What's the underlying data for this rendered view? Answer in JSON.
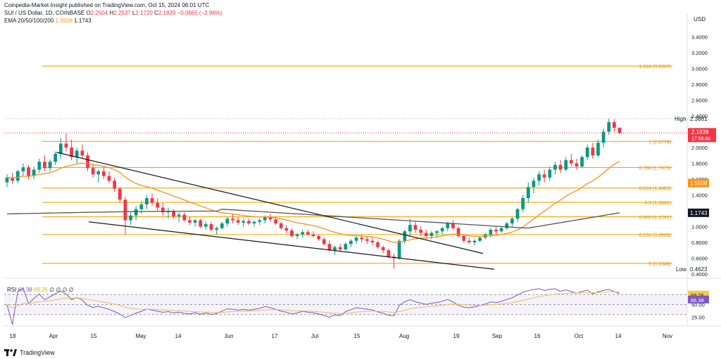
{
  "header": {
    "publisher": "Coinpedia-Market-Insight published on TradingView.com, Oct 15, 2024 06:01 UTC",
    "symbol": "SUI / US Dollar, 1D, COINBASE",
    "o_label": "O",
    "o_val": "2.2504",
    "h_label": "H",
    "h_val": "2.2537",
    "l_label": "L",
    "l_val": "2.1720",
    "c_label": "C",
    "c_val": "2.1839",
    "change": "−0.0665 (−2.96%)",
    "ema_label": "EMA 20/50/100/200",
    "ema_val1": "1.5508",
    "ema_val2": "1.1743"
  },
  "currency": "USD",
  "rsi_header": {
    "label": "RSI",
    "val1": "66.38",
    "val2": "69.26",
    "zeros": "∅ ∅ ∅ ∅"
  },
  "footer": {
    "brand": "TradingView"
  },
  "colors": {
    "up": "#089981",
    "down": "#f23645",
    "fib": "#f7a600",
    "ema_orange": "#f7931a",
    "ema_gray": "#555555",
    "rsi": "#7e57c2",
    "rsi_ma": "#e6c35c"
  },
  "chart_data": {
    "type": "candlestick",
    "price_axis": {
      "ylim": [
        0.4,
        3.6
      ],
      "ticks": [
        "3.4000",
        "3.2000",
        "3.0000",
        "2.8000",
        "2.6000",
        "2.4000",
        "2.2000",
        "2.0000",
        "1.8000",
        "1.6000",
        "1.4000",
        "1.2000",
        "1.0000",
        "0.8000",
        "0.6000",
        "0.4000"
      ]
    },
    "x_ticks": [
      "18",
      "Apr",
      "15",
      "May",
      "14",
      "Jun",
      "17",
      "Jul",
      "15",
      "Aug",
      "19",
      "Sep",
      "16",
      "Oct",
      "14",
      "Nov"
    ],
    "fib_levels": [
      {
        "label": "1.618 (3.0307)",
        "value": 3.0307
      },
      {
        "label": "1 (2.0774)",
        "value": 2.0774
      },
      {
        "label": "0.786 (1.7473)",
        "value": 1.7473
      },
      {
        "label": "0.618 (1.4883)",
        "value": 1.4883
      },
      {
        "label": "0.5 (1.3061)",
        "value": 1.3061
      },
      {
        "label": "0.382 (1.1241)",
        "value": 1.1241
      },
      {
        "label": "0.236 (0.8989)",
        "value": 0.8989
      },
      {
        "label": "0 (0.5348)",
        "value": 0.5348
      }
    ],
    "markers": {
      "high_label": "High",
      "high": "2.3661",
      "low_label": "Low",
      "low": "0.4623",
      "last_price": "2.1839",
      "countdown": "17:58:48",
      "ema_fast": "1.5508",
      "ema_slow": "1.1743"
    },
    "rsi_axis": {
      "ticks": [
        "69.26",
        "66.38",
        "50.00",
        "25.00"
      ],
      "ylim": [
        10,
        90
      ]
    },
    "candles": [
      [
        1.56,
        1.66,
        1.5,
        1.62
      ],
      [
        1.62,
        1.68,
        1.54,
        1.58
      ],
      [
        1.58,
        1.72,
        1.55,
        1.7
      ],
      [
        1.7,
        1.8,
        1.64,
        1.75
      ],
      [
        1.75,
        1.78,
        1.6,
        1.64
      ],
      [
        1.64,
        1.76,
        1.6,
        1.72
      ],
      [
        1.72,
        1.86,
        1.68,
        1.82
      ],
      [
        1.82,
        1.9,
        1.7,
        1.74
      ],
      [
        1.74,
        1.85,
        1.7,
        1.82
      ],
      [
        1.82,
        1.95,
        1.78,
        1.92
      ],
      [
        1.92,
        2.12,
        1.86,
        2.05
      ],
      [
        2.05,
        2.18,
        1.95,
        2.0
      ],
      [
        2.0,
        2.1,
        1.84,
        1.88
      ],
      [
        1.88,
        2.0,
        1.8,
        1.96
      ],
      [
        1.96,
        2.04,
        1.86,
        1.9
      ],
      [
        1.9,
        1.94,
        1.7,
        1.74
      ],
      [
        1.74,
        1.8,
        1.62,
        1.66
      ],
      [
        1.66,
        1.72,
        1.56,
        1.7
      ],
      [
        1.7,
        1.75,
        1.6,
        1.64
      ],
      [
        1.64,
        1.7,
        1.55,
        1.58
      ],
      [
        1.58,
        1.62,
        1.44,
        1.48
      ],
      [
        1.48,
        1.5,
        1.3,
        1.34
      ],
      [
        1.34,
        1.38,
        0.9,
        1.08
      ],
      [
        1.08,
        1.18,
        1.02,
        1.14
      ],
      [
        1.14,
        1.26,
        1.08,
        1.22
      ],
      [
        1.22,
        1.32,
        1.16,
        1.28
      ],
      [
        1.28,
        1.4,
        1.22,
        1.36
      ],
      [
        1.36,
        1.42,
        1.26,
        1.3
      ],
      [
        1.3,
        1.36,
        1.2,
        1.24
      ],
      [
        1.24,
        1.3,
        1.14,
        1.18
      ],
      [
        1.18,
        1.24,
        1.1,
        1.2
      ],
      [
        1.2,
        1.22,
        1.1,
        1.13
      ],
      [
        1.13,
        1.18,
        1.06,
        1.15
      ],
      [
        1.15,
        1.18,
        1.06,
        1.08
      ],
      [
        1.08,
        1.12,
        1.02,
        1.05
      ],
      [
        1.05,
        1.1,
        1.0,
        1.08
      ],
      [
        1.08,
        1.1,
        0.98,
        1.0
      ],
      [
        1.0,
        1.06,
        0.96,
        1.03
      ],
      [
        1.03,
        1.06,
        0.94,
        0.96
      ],
      [
        0.96,
        1.0,
        0.9,
        0.98
      ],
      [
        0.98,
        1.06,
        0.96,
        1.04
      ],
      [
        1.04,
        1.12,
        1.0,
        1.1
      ],
      [
        1.1,
        1.16,
        1.04,
        1.08
      ],
      [
        1.08,
        1.12,
        1.02,
        1.05
      ],
      [
        1.05,
        1.1,
        1.0,
        1.07
      ],
      [
        1.07,
        1.1,
        1.02,
        1.04
      ],
      [
        1.04,
        1.08,
        1.0,
        1.06
      ],
      [
        1.06,
        1.1,
        1.02,
        1.08
      ],
      [
        1.08,
        1.14,
        1.04,
        1.12
      ],
      [
        1.12,
        1.16,
        1.06,
        1.09
      ],
      [
        1.09,
        1.12,
        1.02,
        1.04
      ],
      [
        1.04,
        1.06,
        0.96,
        0.98
      ],
      [
        0.98,
        1.02,
        0.92,
        0.95
      ],
      [
        0.95,
        0.98,
        0.86,
        0.88
      ],
      [
        0.88,
        0.92,
        0.84,
        0.9
      ],
      [
        0.9,
        0.96,
        0.86,
        0.93
      ],
      [
        0.93,
        0.96,
        0.88,
        0.9
      ],
      [
        0.9,
        0.94,
        0.86,
        0.88
      ],
      [
        0.88,
        0.9,
        0.82,
        0.84
      ],
      [
        0.84,
        0.86,
        0.76,
        0.78
      ],
      [
        0.78,
        0.82,
        0.68,
        0.7
      ],
      [
        0.7,
        0.76,
        0.64,
        0.74
      ],
      [
        0.74,
        0.78,
        0.68,
        0.71
      ],
      [
        0.71,
        0.8,
        0.7,
        0.78
      ],
      [
        0.78,
        0.84,
        0.74,
        0.82
      ],
      [
        0.82,
        0.88,
        0.78,
        0.86
      ],
      [
        0.86,
        0.9,
        0.8,
        0.84
      ],
      [
        0.84,
        0.88,
        0.78,
        0.82
      ],
      [
        0.82,
        0.86,
        0.76,
        0.8
      ],
      [
        0.8,
        0.82,
        0.72,
        0.74
      ],
      [
        0.74,
        0.76,
        0.66,
        0.7
      ],
      [
        0.7,
        0.72,
        0.6,
        0.62
      ],
      [
        0.62,
        0.66,
        0.47,
        0.6
      ],
      [
        0.6,
        0.84,
        0.58,
        0.82
      ],
      [
        0.82,
        0.96,
        0.78,
        0.94
      ],
      [
        0.94,
        1.1,
        0.88,
        1.02
      ],
      [
        1.02,
        1.06,
        0.92,
        0.96
      ],
      [
        0.96,
        1.0,
        0.88,
        0.92
      ],
      [
        0.92,
        0.96,
        0.84,
        0.88
      ],
      [
        0.88,
        0.94,
        0.84,
        0.92
      ],
      [
        0.92,
        0.96,
        0.86,
        0.94
      ],
      [
        0.94,
        1.0,
        0.9,
        0.98
      ],
      [
        0.98,
        1.06,
        0.94,
        1.04
      ],
      [
        1.04,
        1.08,
        0.96,
        0.98
      ],
      [
        0.98,
        1.0,
        0.86,
        0.88
      ],
      [
        0.88,
        0.9,
        0.8,
        0.82
      ],
      [
        0.82,
        0.86,
        0.78,
        0.8
      ],
      [
        0.8,
        0.84,
        0.76,
        0.82
      ],
      [
        0.82,
        0.88,
        0.8,
        0.86
      ],
      [
        0.86,
        0.92,
        0.84,
        0.9
      ],
      [
        0.9,
        0.98,
        0.86,
        0.96
      ],
      [
        0.96,
        1.0,
        0.9,
        0.94
      ],
      [
        0.94,
        1.0,
        0.92,
        0.98
      ],
      [
        0.98,
        1.06,
        0.96,
        1.04
      ],
      [
        1.04,
        1.12,
        1.0,
        1.1
      ],
      [
        1.1,
        1.24,
        1.06,
        1.22
      ],
      [
        1.22,
        1.4,
        1.18,
        1.36
      ],
      [
        1.36,
        1.56,
        1.3,
        1.5
      ],
      [
        1.5,
        1.62,
        1.42,
        1.58
      ],
      [
        1.58,
        1.7,
        1.52,
        1.66
      ],
      [
        1.66,
        1.72,
        1.56,
        1.62
      ],
      [
        1.62,
        1.76,
        1.58,
        1.72
      ],
      [
        1.72,
        1.82,
        1.66,
        1.78
      ],
      [
        1.78,
        1.84,
        1.68,
        1.72
      ],
      [
        1.72,
        1.88,
        1.7,
        1.84
      ],
      [
        1.84,
        1.92,
        1.76,
        1.8
      ],
      [
        1.8,
        1.86,
        1.72,
        1.76
      ],
      [
        1.76,
        1.9,
        1.74,
        1.88
      ],
      [
        1.88,
        2.04,
        1.84,
        2.0
      ],
      [
        2.0,
        2.06,
        1.86,
        1.9
      ],
      [
        1.9,
        2.1,
        1.88,
        2.06
      ],
      [
        2.06,
        2.24,
        2.0,
        2.2
      ],
      [
        2.2,
        2.37,
        2.16,
        2.32
      ],
      [
        2.32,
        2.36,
        2.2,
        2.25
      ],
      [
        2.2504,
        2.2537,
        2.172,
        2.1839
      ]
    ]
  }
}
